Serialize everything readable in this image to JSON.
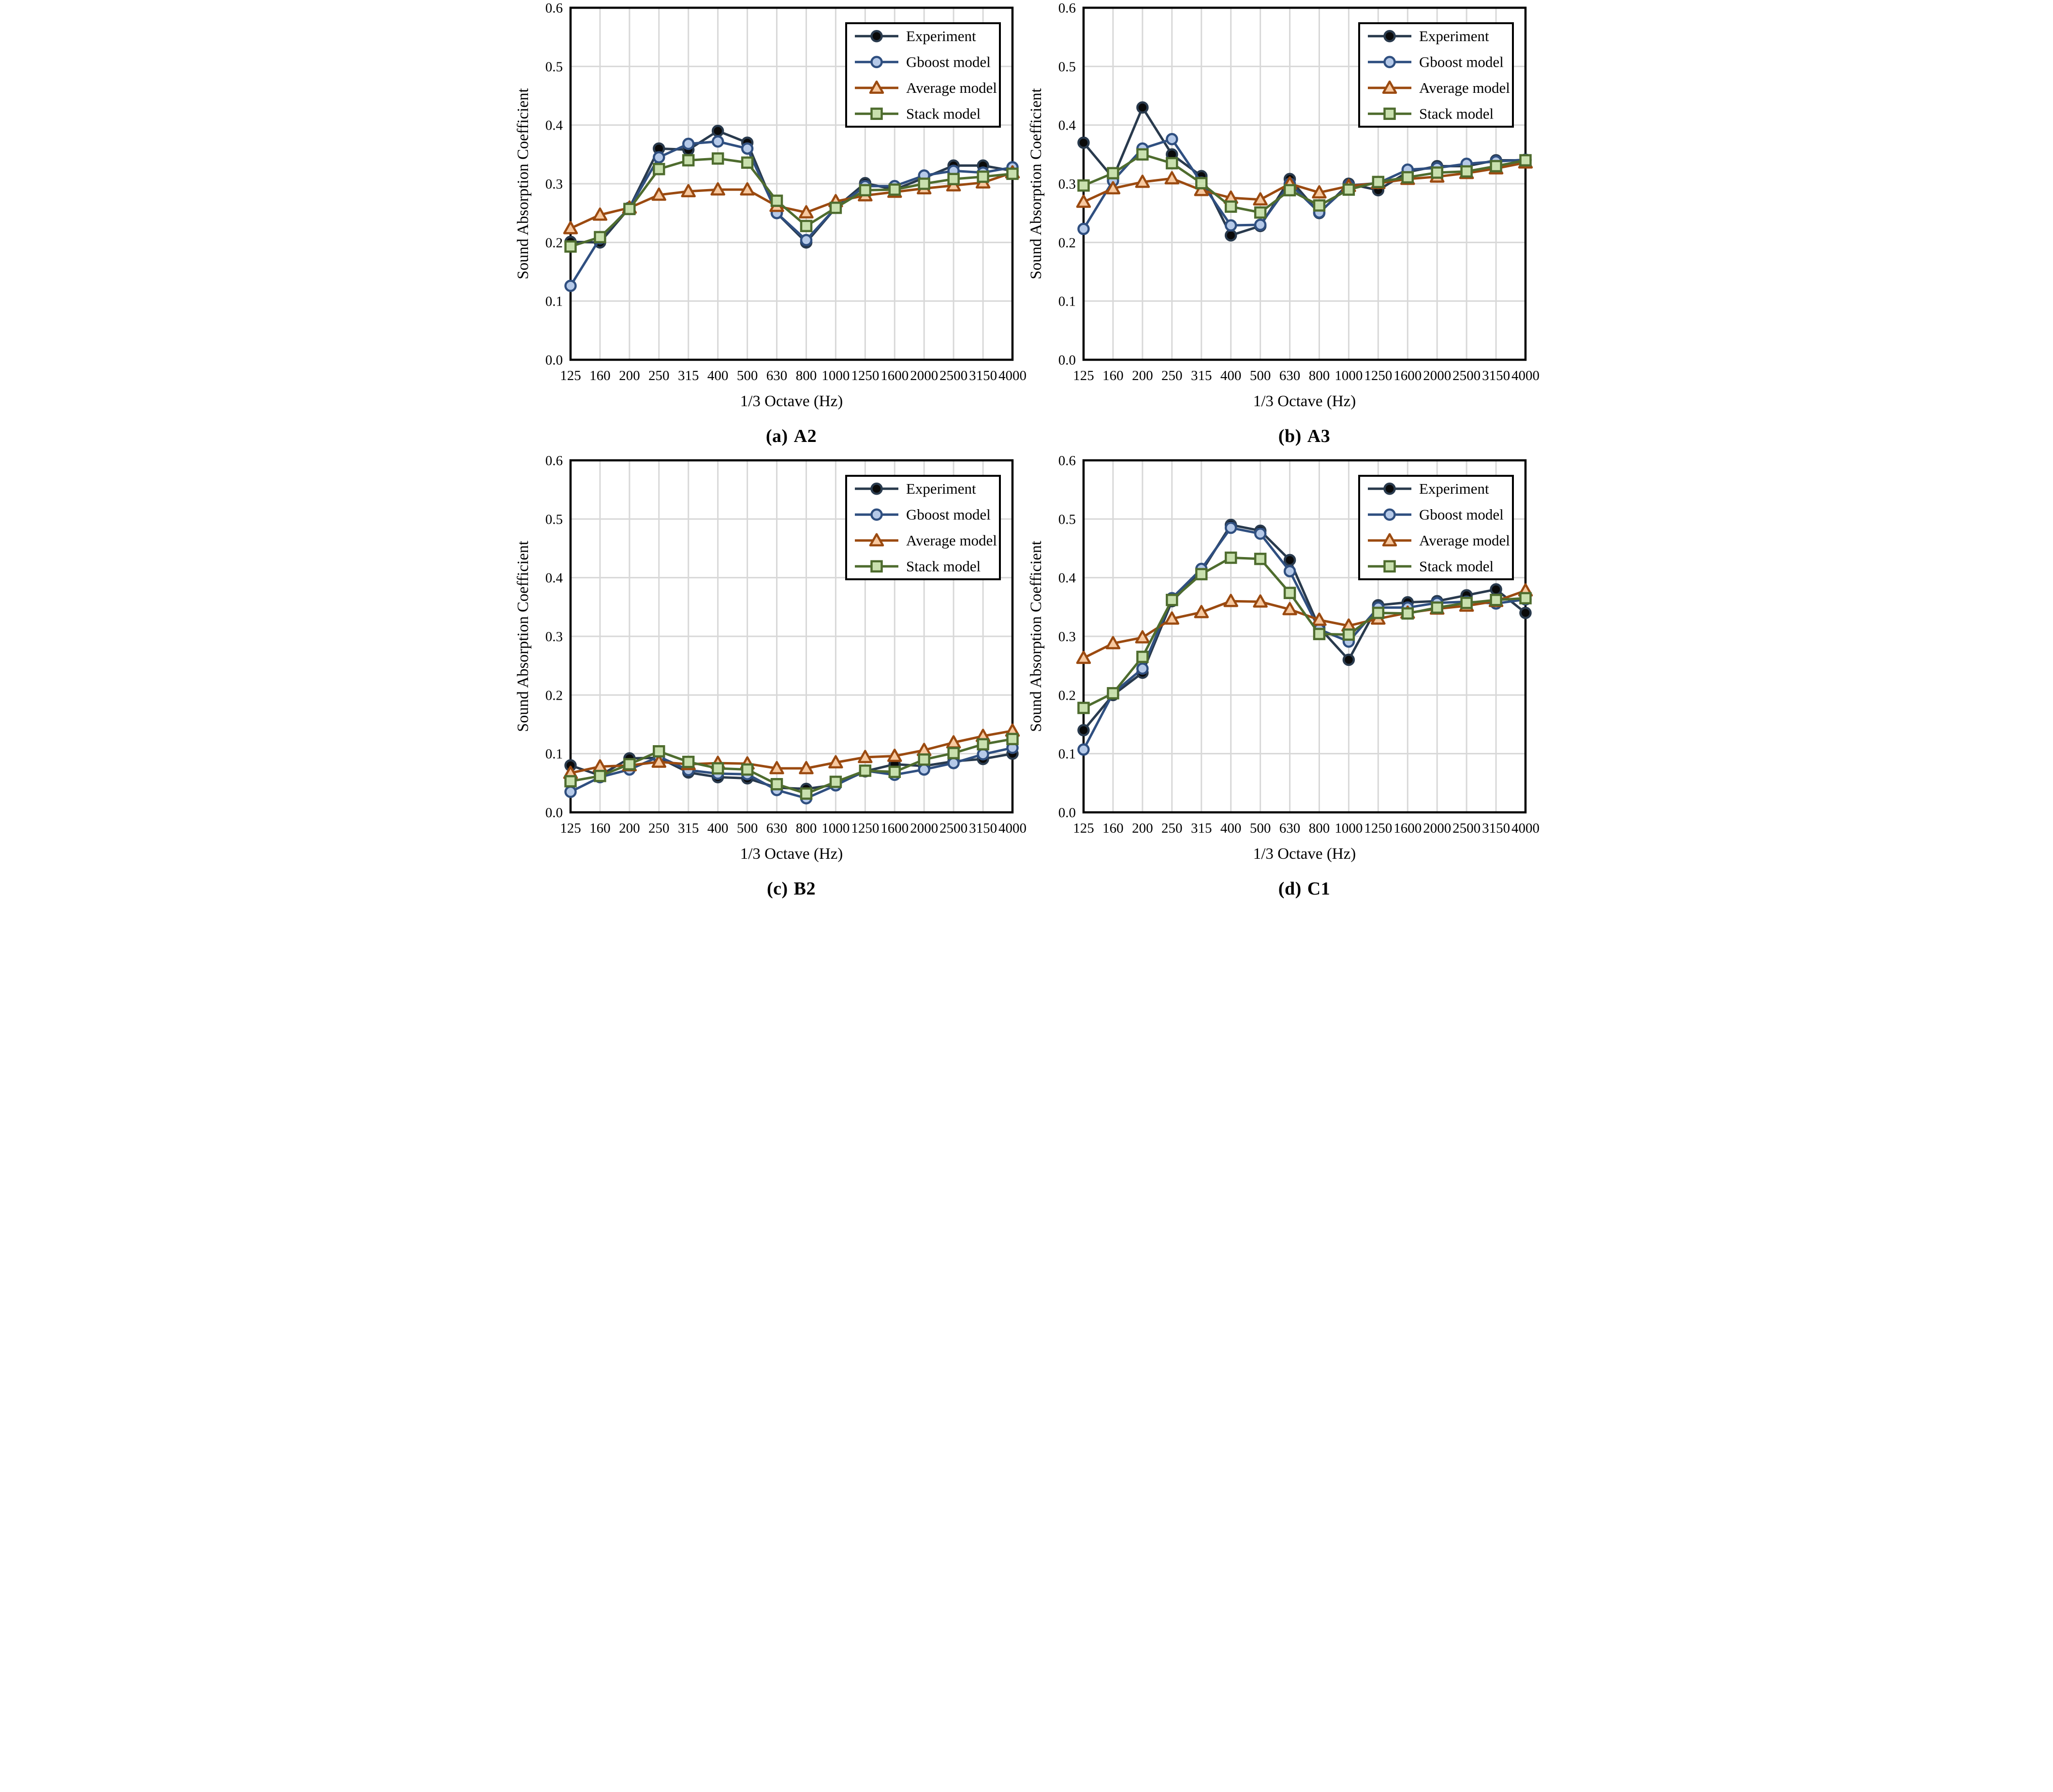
{
  "figure": {
    "ylabel": "Sound Absorption Coefficient",
    "xlabel": "1/3 Octave (Hz)",
    "yticks": [
      "0.0",
      "0.1",
      "0.2",
      "0.3",
      "0.4",
      "0.5",
      "0.6"
    ],
    "ylim": [
      0.0,
      0.6
    ],
    "grid_color": "#d8d8d8",
    "frame_color": "#000000",
    "legend_position": "upper right",
    "legend": [
      "Experiment",
      "Gboost model",
      "Average model",
      "Stack model"
    ],
    "series_styles": [
      {
        "name": "Experiment",
        "marker": "circle",
        "line": "#293a4d",
        "marker_fill": "#0a0a0a",
        "marker_stroke": "#293a4d"
      },
      {
        "name": "Gboost model",
        "marker": "circle",
        "line": "#2f4f80",
        "marker_fill": "#b5c9e8",
        "marker_stroke": "#2f4f80"
      },
      {
        "name": "Average model",
        "marker": "triangle",
        "line": "#9b4a10",
        "marker_fill": "#f7c9a0",
        "marker_stroke": "#9b4a10"
      },
      {
        "name": "Stack model",
        "marker": "square",
        "line": "#4e6c2e",
        "marker_fill": "#c9e0ae",
        "marker_stroke": "#4e6c2e"
      }
    ]
  },
  "chart_data": [
    {
      "type": "line",
      "panel_label": "(a)",
      "sample": "A2",
      "title": "(a) A2",
      "xlabel": "1/3 Octave (Hz)",
      "ylabel": "Sound Absorption Coefficient",
      "ylim": [
        0.0,
        0.6
      ],
      "yticks": [
        "0.0",
        "0.1",
        "0.2",
        "0.3",
        "0.4",
        "0.5",
        "0.6"
      ],
      "grid": true,
      "legend_position": "upper right",
      "categories": [
        "125",
        "160",
        "200",
        "250",
        "315",
        "400",
        "500",
        "630",
        "800",
        "1000",
        "1250",
        "1600",
        "2000",
        "2500",
        "3150",
        "4000"
      ],
      "series": [
        {
          "name": "Experiment",
          "values": [
            0.201,
            0.2,
            0.259,
            0.36,
            0.358,
            0.39,
            0.37,
            0.25,
            0.2,
            0.259,
            0.301,
            0.29,
            0.31,
            0.331,
            0.331,
            0.322
          ]
        },
        {
          "name": "Gboost model",
          "values": [
            0.126,
            0.207,
            0.259,
            0.345,
            0.368,
            0.372,
            0.36,
            0.25,
            0.204,
            0.259,
            0.296,
            0.296,
            0.314,
            0.322,
            0.319,
            0.328
          ]
        },
        {
          "name": "Average model",
          "values": [
            0.224,
            0.247,
            0.259,
            0.281,
            0.287,
            0.29,
            0.29,
            0.262,
            0.251,
            0.27,
            0.28,
            0.286,
            0.292,
            0.297,
            0.302,
            0.319
          ]
        },
        {
          "name": "Stack model",
          "values": [
            0.193,
            0.209,
            0.257,
            0.325,
            0.34,
            0.343,
            0.336,
            0.271,
            0.228,
            0.259,
            0.289,
            0.29,
            0.3,
            0.308,
            0.312,
            0.317
          ]
        }
      ]
    },
    {
      "type": "line",
      "panel_label": "(b)",
      "sample": "A3",
      "title": "(b) A3",
      "xlabel": "1/3 Octave (Hz)",
      "ylabel": "Sound Absorption Coefficient",
      "ylim": [
        0.0,
        0.6
      ],
      "yticks": [
        "0.0",
        "0.1",
        "0.2",
        "0.3",
        "0.4",
        "0.5",
        "0.6"
      ],
      "grid": true,
      "legend_position": "upper right",
      "categories": [
        "125",
        "160",
        "200",
        "250",
        "315",
        "400",
        "500",
        "630",
        "800",
        "1000",
        "1250",
        "1600",
        "2000",
        "2500",
        "3150",
        "4000"
      ],
      "series": [
        {
          "name": "Experiment",
          "values": [
            0.37,
            0.31,
            0.43,
            0.35,
            0.313,
            0.212,
            0.228,
            0.308,
            0.25,
            0.3,
            0.289,
            0.32,
            0.33,
            0.33,
            0.34,
            0.34
          ]
        },
        {
          "name": "Gboost model",
          "values": [
            0.223,
            0.305,
            0.36,
            0.376,
            0.302,
            0.229,
            0.23,
            0.3,
            0.251,
            0.297,
            0.301,
            0.324,
            0.327,
            0.334,
            0.338,
            0.341
          ]
        },
        {
          "name": "Average model",
          "values": [
            0.269,
            0.292,
            0.303,
            0.309,
            0.289,
            0.276,
            0.273,
            0.3,
            0.285,
            0.296,
            0.301,
            0.308,
            0.312,
            0.318,
            0.326,
            0.336
          ]
        },
        {
          "name": "Stack model",
          "values": [
            0.297,
            0.318,
            0.35,
            0.335,
            0.301,
            0.261,
            0.251,
            0.289,
            0.263,
            0.29,
            0.303,
            0.311,
            0.319,
            0.321,
            0.33,
            0.34
          ]
        }
      ]
    },
    {
      "type": "line",
      "panel_label": "(c)",
      "sample": "B2",
      "title": "(c) B2",
      "xlabel": "1/3 Octave (Hz)",
      "ylabel": "Sound Absorption Coefficient",
      "ylim": [
        0.0,
        0.6
      ],
      "yticks": [
        "0.0",
        "0.1",
        "0.2",
        "0.3",
        "0.4",
        "0.5",
        "0.6"
      ],
      "grid": true,
      "legend_position": "upper right",
      "categories": [
        "125",
        "160",
        "200",
        "250",
        "315",
        "400",
        "500",
        "630",
        "800",
        "1000",
        "1250",
        "1600",
        "2000",
        "2500",
        "3150",
        "4000"
      ],
      "series": [
        {
          "name": "Experiment",
          "values": [
            0.08,
            0.063,
            0.092,
            0.093,
            0.068,
            0.06,
            0.058,
            0.042,
            0.04,
            0.047,
            0.07,
            0.082,
            0.079,
            0.087,
            0.091,
            0.1
          ]
        },
        {
          "name": "Gboost model",
          "values": [
            0.035,
            0.06,
            0.073,
            0.095,
            0.072,
            0.066,
            0.065,
            0.038,
            0.024,
            0.046,
            0.071,
            0.064,
            0.073,
            0.084,
            0.099,
            0.11
          ]
        },
        {
          "name": "Average model",
          "values": [
            0.067,
            0.078,
            0.08,
            0.086,
            0.082,
            0.084,
            0.083,
            0.075,
            0.075,
            0.085,
            0.094,
            0.096,
            0.106,
            0.119,
            0.13,
            0.139
          ]
        },
        {
          "name": "Stack model",
          "values": [
            0.053,
            0.062,
            0.082,
            0.104,
            0.086,
            0.075,
            0.073,
            0.048,
            0.032,
            0.052,
            0.071,
            0.069,
            0.09,
            0.101,
            0.116,
            0.125
          ]
        }
      ]
    },
    {
      "type": "line",
      "panel_label": "(d)",
      "sample": "C1",
      "title": "(d) C1",
      "xlabel": "1/3 Octave (Hz)",
      "ylabel": "Sound Absorption Coefficient",
      "ylim": [
        0.0,
        0.6
      ],
      "yticks": [
        "0.0",
        "0.1",
        "0.2",
        "0.3",
        "0.4",
        "0.5",
        "0.6"
      ],
      "grid": true,
      "legend_position": "upper right",
      "categories": [
        "125",
        "160",
        "200",
        "250",
        "315",
        "400",
        "500",
        "630",
        "800",
        "1000",
        "1250",
        "1600",
        "2000",
        "2500",
        "3150",
        "4000"
      ],
      "series": [
        {
          "name": "Experiment",
          "values": [
            0.14,
            0.2,
            0.238,
            0.36,
            0.41,
            0.49,
            0.48,
            0.43,
            0.315,
            0.26,
            0.353,
            0.358,
            0.36,
            0.37,
            0.38,
            0.34
          ]
        },
        {
          "name": "Gboost model",
          "values": [
            0.107,
            0.203,
            0.245,
            0.365,
            0.415,
            0.485,
            0.475,
            0.411,
            0.312,
            0.291,
            0.349,
            0.349,
            0.357,
            0.359,
            0.356,
            0.363
          ]
        },
        {
          "name": "Average model",
          "values": [
            0.263,
            0.288,
            0.298,
            0.33,
            0.341,
            0.36,
            0.359,
            0.346,
            0.328,
            0.318,
            0.33,
            0.34,
            0.347,
            0.352,
            0.36,
            0.378
          ]
        },
        {
          "name": "Stack model",
          "values": [
            0.178,
            0.203,
            0.265,
            0.362,
            0.406,
            0.434,
            0.432,
            0.374,
            0.304,
            0.303,
            0.34,
            0.339,
            0.349,
            0.357,
            0.362,
            0.365
          ]
        }
      ]
    }
  ]
}
